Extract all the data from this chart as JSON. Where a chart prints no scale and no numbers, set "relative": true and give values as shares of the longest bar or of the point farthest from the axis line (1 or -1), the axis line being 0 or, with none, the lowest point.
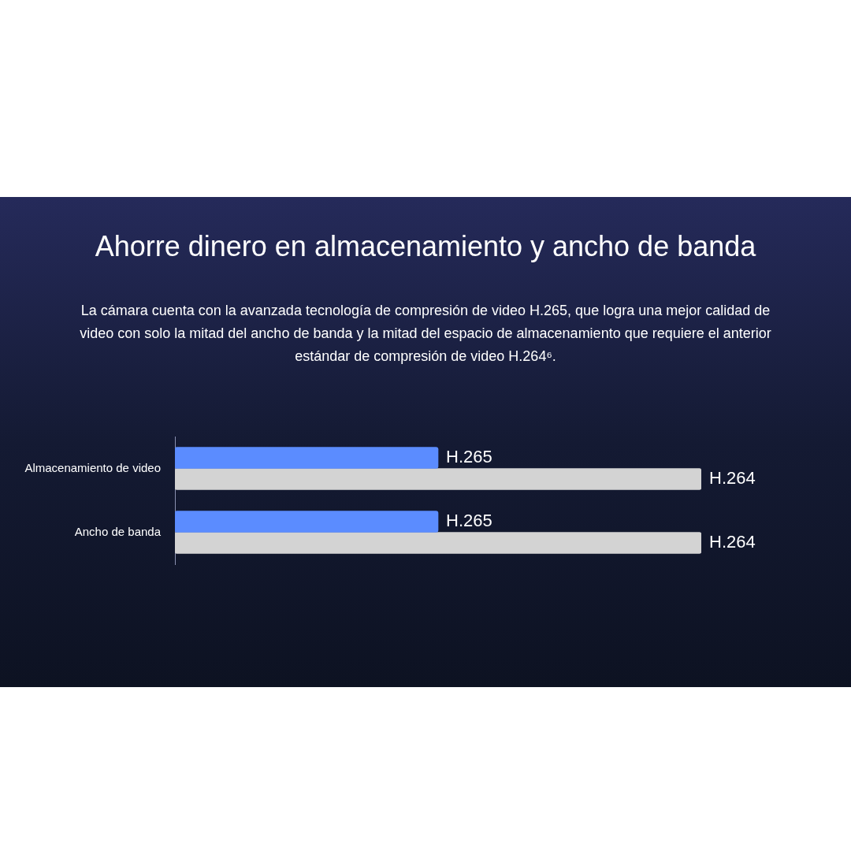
{
  "chart_data": {
    "type": "bar",
    "orientation": "horizontal",
    "relative": true,
    "title": "Ahorre dinero en almacenamiento y ancho de banda",
    "subtitle": "La cámara cuenta con la avanzada tecnología de compresión de video H.265, que logra una mejor calidad de video con solo la mitad del ancho de banda y la mitad del espacio de almacenamiento que requiere el anterior estándar de compresión de video H.264⁶.",
    "categories": [
      "Almacenamiento de video",
      "Ancho de banda"
    ],
    "series": [
      {
        "name": "H.265",
        "color": "#5b8cff",
        "values": [
          0.5,
          0.5
        ]
      },
      {
        "name": "H.264",
        "color": "#d3d3d3",
        "values": [
          1,
          1
        ]
      }
    ]
  }
}
